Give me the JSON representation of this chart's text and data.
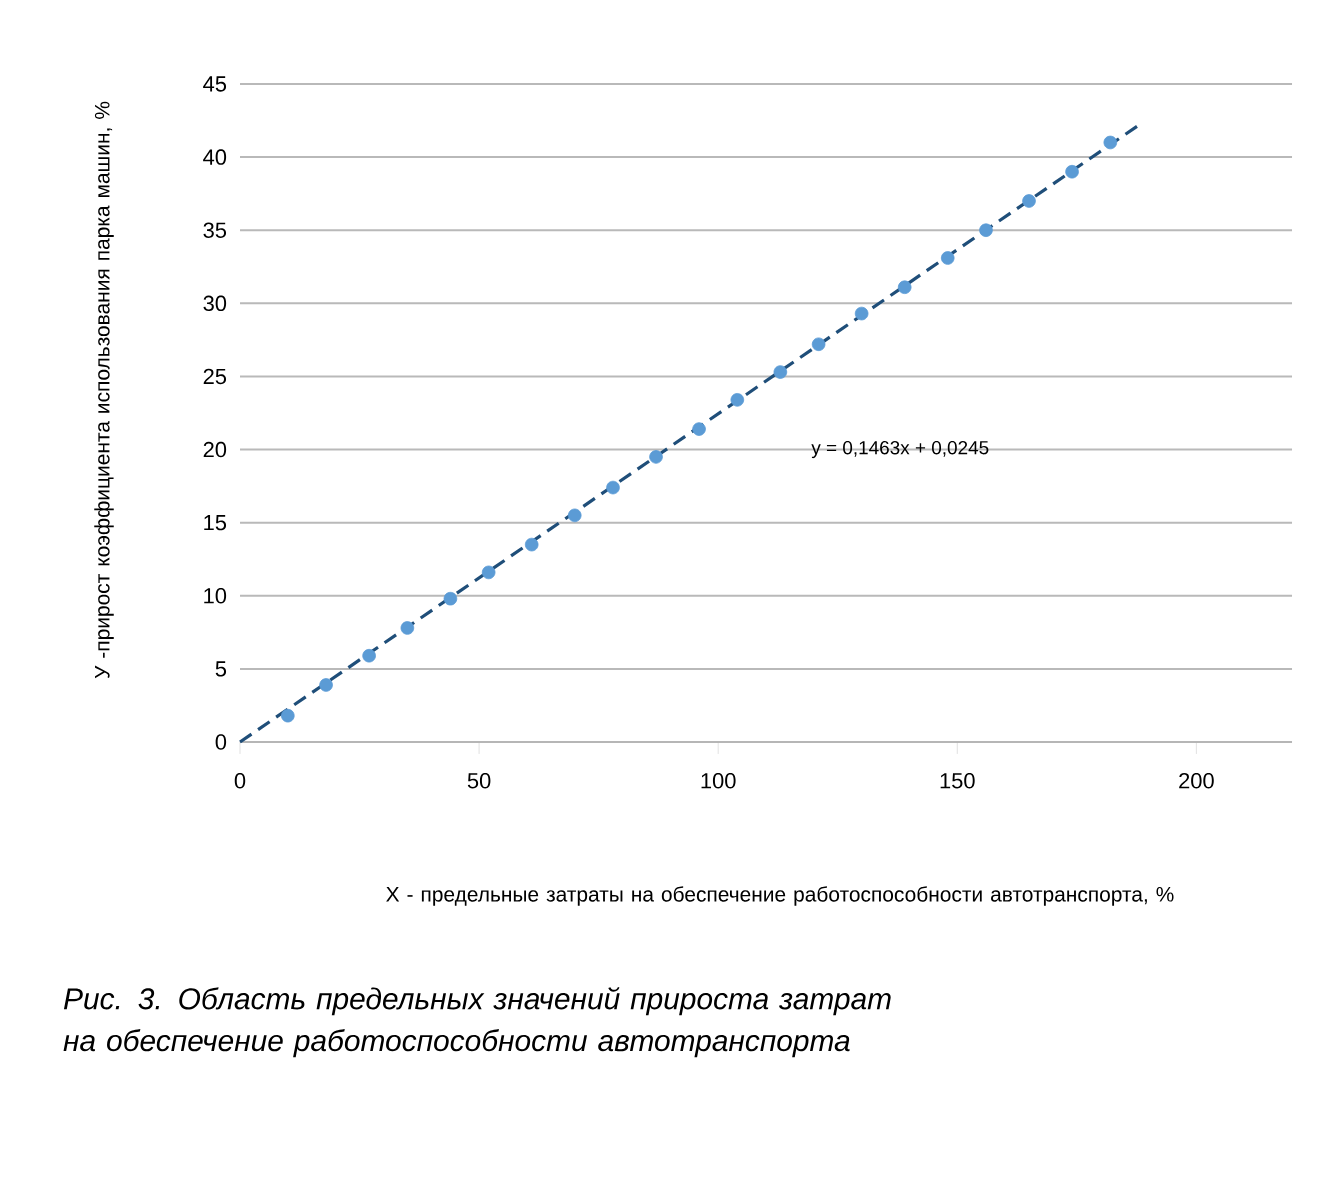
{
  "chart_data": {
    "type": "scatter",
    "xlabel": "X - предельные затраты на обеспечение работоспособности автотранспорта, %",
    "ylabel": "У -прирост коэффициента использования парка машин, %",
    "xlim": [
      0,
      220
    ],
    "xticks": [
      0,
      50,
      100,
      150,
      200
    ],
    "ylim": [
      0,
      45
    ],
    "yticks": [
      0,
      5,
      10,
      15,
      20,
      25,
      30,
      35,
      40,
      45
    ],
    "grid": "y",
    "annotations": [
      "y = 0,1463x + 0,0245",
      "Рис. 3. Область предельных значений прироста затрат на обеспечение работоспособности автотранспорта"
    ],
    "series": [
      {
        "marker": "circle",
        "color": "#5b9bd5",
        "x": [
          10,
          18,
          27,
          35,
          44,
          52,
          61,
          70,
          78,
          87,
          96,
          104,
          113,
          121,
          130,
          139,
          148,
          156,
          165,
          174,
          182
        ],
        "values": [
          1.8,
          3.9,
          5.9,
          7.8,
          9.8,
          11.6,
          13.5,
          15.5,
          17.4,
          19.5,
          21.4,
          23.4,
          25.3,
          27.2,
          29.3,
          31.1,
          33.1,
          35.0,
          37.0,
          39.0,
          41.0
        ]
      },
      {
        "type": "line",
        "marker": "none",
        "line_style": "dashed",
        "color": "#1f4e79",
        "x": [
          0,
          188
        ],
        "values": [
          0,
          42.2
        ]
      }
    ]
  }
}
